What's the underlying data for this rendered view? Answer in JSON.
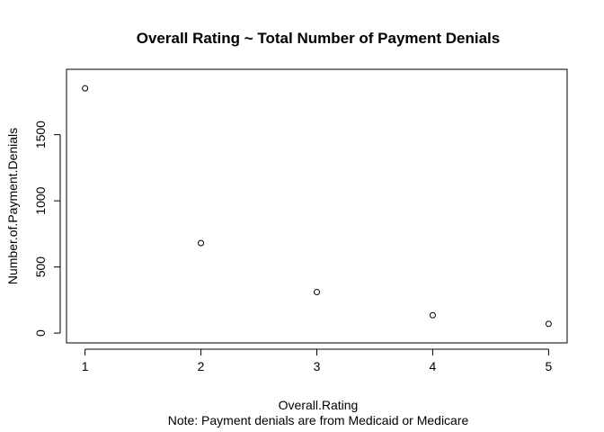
{
  "chart_data": {
    "type": "scatter",
    "title": "Overall Rating ~ Total Number of Payment Denials",
    "xlabel": "Overall.Rating",
    "ylabel": "Number.of.Payment.Denials",
    "note": "Note: Payment denials are from Medicaid or Medicare",
    "x": [
      1,
      2,
      3,
      4,
      5
    ],
    "y": [
      1850,
      680,
      310,
      135,
      70
    ],
    "xlim": [
      0.84,
      5.16
    ],
    "ylim": [
      -74,
      1994
    ],
    "xticks": [
      1,
      2,
      3,
      4,
      5
    ],
    "yticks": [
      0,
      500,
      1000,
      1500
    ],
    "grid": false,
    "legend": "none"
  }
}
